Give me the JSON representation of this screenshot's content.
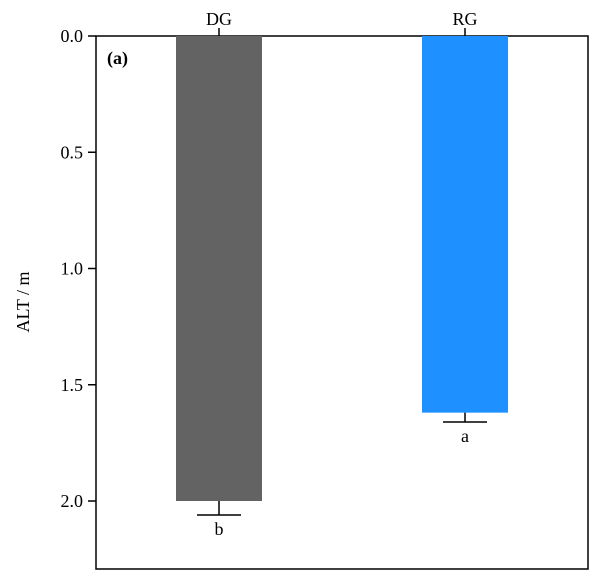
{
  "chart_data": {
    "type": "bar",
    "panel_label": "(a)",
    "categories": [
      "DG",
      "RG"
    ],
    "values": [
      2.0,
      1.62
    ],
    "errors": [
      0.06,
      0.04
    ],
    "significance_letters": [
      "b",
      "a"
    ],
    "colors": [
      "#636363",
      "#1e90ff"
    ],
    "ylabel": "ALT / m",
    "ylim": [
      0,
      2.3
    ],
    "yticks": [
      "0.0",
      "0.5",
      "1.0",
      "1.5",
      "2.0"
    ],
    "y_axis_inverted": true,
    "x_axis_position": "top",
    "grid": false,
    "legend": "none"
  }
}
